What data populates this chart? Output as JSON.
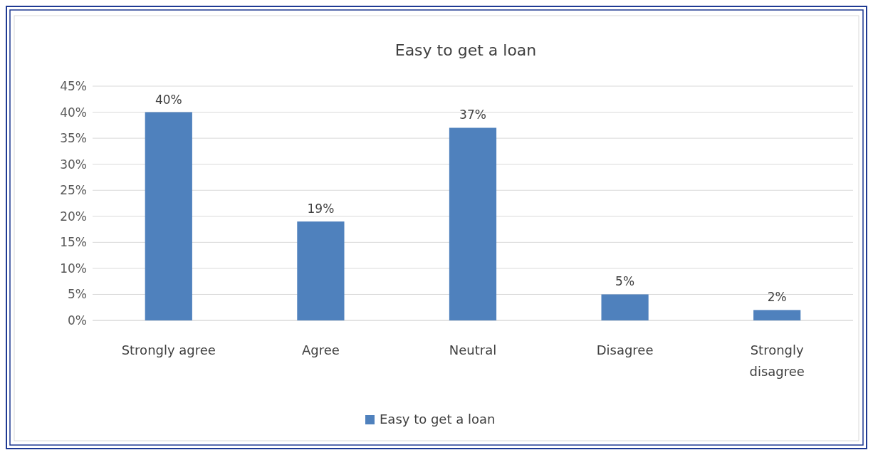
{
  "chart_data": {
    "type": "bar",
    "title": "Easy to get a loan",
    "categories": [
      "Strongly agree",
      "Agree",
      "Neutral",
      "Disagree",
      "Strongly disagree"
    ],
    "series": [
      {
        "name": "Easy to get a loan",
        "color": "#4f81bd",
        "values": [
          40,
          19,
          37,
          5,
          2
        ],
        "value_labels": [
          "40%",
          "19%",
          "37%",
          "5%",
          "2%"
        ]
      }
    ],
    "ylim": [
      0,
      45
    ],
    "yticks": [
      {
        "value": 0,
        "label": "0%"
      },
      {
        "value": 5,
        "label": "5%"
      },
      {
        "value": 10,
        "label": "10%"
      },
      {
        "value": 15,
        "label": "15%"
      },
      {
        "value": 20,
        "label": "20%"
      },
      {
        "value": 25,
        "label": "25%"
      },
      {
        "value": 30,
        "label": "30%"
      },
      {
        "value": 35,
        "label": "35%"
      },
      {
        "value": 40,
        "label": "40%"
      },
      {
        "value": 45,
        "label": "45%"
      }
    ],
    "grid": "y",
    "legend": "bottom"
  }
}
